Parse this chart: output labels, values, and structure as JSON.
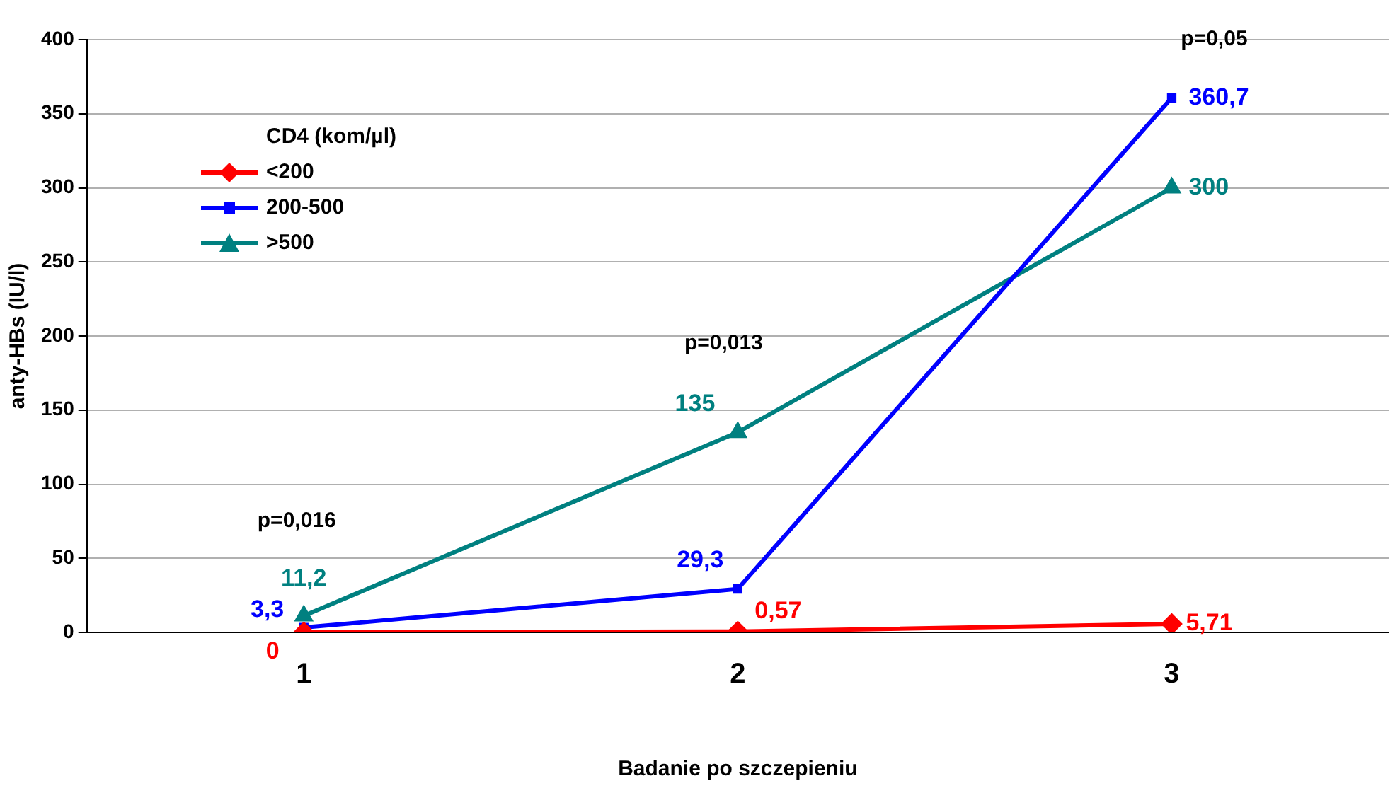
{
  "chart_data": {
    "type": "line",
    "xlabel": "Badanie po szczepieniu",
    "ylabel": "anty-HBs (IU/l)",
    "legend_title": "CD4 (kom/µl)",
    "legend": "top left",
    "grid": "y",
    "categories": [
      "1",
      "2",
      "3"
    ],
    "ylim": [
      0,
      400
    ],
    "yticks": [
      0,
      50,
      100,
      150,
      200,
      250,
      300,
      350,
      400
    ],
    "series": [
      {
        "name": "<200",
        "color": "#ff0000",
        "marker": "diamond",
        "values": [
          0,
          0.57,
          5.71
        ],
        "value_labels": [
          "0",
          "0,57",
          "5,71"
        ]
      },
      {
        "name": "200-500",
        "color": "#0000ff",
        "marker": "square",
        "values": [
          3.3,
          29.3,
          360.7
        ],
        "value_labels": [
          "3,3",
          "29,3",
          "360,7"
        ]
      },
      {
        "name": ">500",
        "color": "#008080",
        "marker": "triangle",
        "values": [
          11.2,
          135,
          300
        ],
        "value_labels": [
          "11,2",
          "135",
          "300"
        ]
      }
    ],
    "annotations": [
      "p=0,016",
      "p=0,013",
      "p=0,05"
    ]
  }
}
